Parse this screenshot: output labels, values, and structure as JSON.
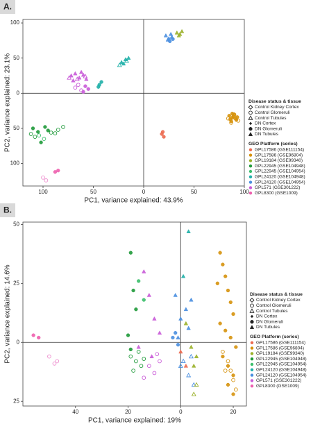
{
  "chart_data": [
    {
      "type": "scatter",
      "label": "A.",
      "xlabel": "PC1, variance explained: 43.9%",
      "ylabel": "PC2, variance explained: 23.1%",
      "xlim": [
        -120,
        100
      ],
      "ylim": [
        -132,
        105
      ],
      "xticks": [
        {
          "value": -100,
          "label": "100"
        },
        {
          "value": -50,
          "label": "50"
        },
        0,
        50,
        100
      ],
      "yticks": [
        100,
        50,
        0,
        {
          "value": -50,
          "label": "50"
        },
        {
          "value": -100,
          "label": "100"
        }
      ],
      "legends": [
        {
          "title": "Disease status & tissue",
          "entries": [
            {
              "name": "Control Kidney Cortex",
              "shape": "diamond-open"
            },
            {
              "name": "Control Glomeruli",
              "shape": "circle-open"
            },
            {
              "name": "Control Tubules",
              "shape": "triangle-open"
            },
            {
              "name": "DN Cortex",
              "shape": "diamond"
            },
            {
              "name": "DN Glomeruli",
              "shape": "circle"
            },
            {
              "name": "DN Tubules",
              "shape": "triangle"
            }
          ]
        },
        {
          "title": "GEO Platform (series)",
          "entries": [
            {
              "name": "GPL17586 (GSE111154)",
              "color": "#ec6a50"
            },
            {
              "name": "GPL17586 (GSE96804)",
              "color": "#d6920c"
            },
            {
              "name": "GPL19184 (GSE99340)",
              "color": "#9bb12a"
            },
            {
              "name": "GPL22945 (GSE104948)",
              "color": "#1f9a3a"
            },
            {
              "name": "GPL22945 (GSE104954)",
              "color": "#3cbf6c"
            },
            {
              "name": "GPL24120 (GSE104948)",
              "color": "#1fb0a8"
            },
            {
              "name": "GPL24120 (GSE104954)",
              "color": "#4a8fe0"
            },
            {
              "name": "GPL571 (GSE301222)",
              "color": "#c95bd8"
            },
            {
              "name": "GPL8300 (GSE1009)",
              "color": "#ee5fae"
            }
          ]
        }
      ],
      "series": [
        {
          "color": "#d6920c",
          "shape": "circle",
          "x": [
            85,
            88,
            90,
            92,
            87,
            89,
            91,
            86,
            93,
            88
          ],
          "y": [
            -32,
            -35,
            -30,
            -38,
            -40,
            -33,
            -36,
            -37,
            -34,
            -29
          ]
        },
        {
          "color": "#d6920c",
          "shape": "circle-open",
          "x": [
            84,
            90,
            94,
            87
          ],
          "y": [
            -36,
            -31,
            -39,
            -42
          ]
        },
        {
          "color": "#ec6a50",
          "shape": "circle",
          "x": [
            18,
            20,
            19
          ],
          "y": [
            -58,
            -62,
            -55
          ]
        },
        {
          "color": "#4a8fe0",
          "shape": "triangle",
          "x": [
            22,
            25,
            28,
            24,
            27
          ],
          "y": [
            82,
            78,
            80,
            76,
            84
          ]
        },
        {
          "color": "#4a8fe0",
          "shape": "circle",
          "x": [
            26,
            29
          ],
          "y": [
            74,
            77
          ]
        },
        {
          "color": "#9bb12a",
          "shape": "triangle",
          "x": [
            33,
            36,
            38,
            35
          ],
          "y": [
            86,
            84,
            88,
            82
          ]
        },
        {
          "color": "#1fb0a8",
          "shape": "triangle",
          "x": [
            -22,
            -18,
            -15,
            -20
          ],
          "y": [
            44,
            48,
            50,
            42
          ]
        },
        {
          "color": "#1fb0a8",
          "shape": "triangle-open",
          "x": [
            -24,
            -17
          ],
          "y": [
            40,
            46
          ]
        },
        {
          "color": "#1fb0a8",
          "shape": "circle",
          "x": [
            -44,
            -42,
            -45
          ],
          "y": [
            12,
            16,
            9
          ]
        },
        {
          "color": "#c95bd8",
          "shape": "triangle",
          "x": [
            -72,
            -68,
            -64,
            -60,
            -57,
            -70,
            -62
          ],
          "y": [
            25,
            28,
            22,
            26,
            20,
            18,
            30
          ]
        },
        {
          "color": "#c95bd8",
          "shape": "triangle-open",
          "x": [
            -66,
            -58,
            -74
          ],
          "y": [
            20,
            24,
            22
          ]
        },
        {
          "color": "#c95bd8",
          "shape": "circle-open",
          "x": [
            -68,
            -62,
            -65
          ],
          "y": [
            8,
            4,
            12
          ]
        },
        {
          "color": "#c95bd8",
          "shape": "circle",
          "x": [
            -58,
            -55,
            -60
          ],
          "y": [
            10,
            6,
            2
          ]
        },
        {
          "color": "#1f9a3a",
          "shape": "circle",
          "x": [
            -110,
            -105,
            -98,
            -102,
            -95
          ],
          "y": [
            -50,
            -55,
            -48,
            -70,
            -53
          ]
        },
        {
          "color": "#1f9a3a",
          "shape": "circle-open",
          "x": [
            -112,
            -108,
            -92,
            -85,
            -80,
            -88
          ],
          "y": [
            -58,
            -62,
            -56,
            -52,
            -48,
            -57
          ]
        },
        {
          "color": "#3cbf6c",
          "shape": "circle-open",
          "x": [
            -104,
            -99
          ],
          "y": [
            -60,
            -65
          ]
        },
        {
          "color": "#ee5fae",
          "shape": "circle",
          "x": [
            -88,
            -85
          ],
          "y": [
            -112,
            -110
          ]
        },
        {
          "color": "#ee8fcf",
          "shape": "circle-open",
          "x": [
            -100,
            -97
          ],
          "y": [
            -120,
            -124
          ]
        }
      ]
    },
    {
      "type": "scatter",
      "label": "B.",
      "xlabel": "PC1, variance explained: 19%",
      "ylabel": "PC2, variance explained: 14.6%",
      "xlim": [
        -60,
        25
      ],
      "ylim": [
        -27,
        51
      ],
      "xticks": [
        {
          "value": -40,
          "label": "40"
        },
        {
          "value": -20,
          "label": "20"
        },
        0,
        20
      ],
      "yticks": [
        50,
        25,
        0,
        {
          "value": -25,
          "label": "25"
        }
      ],
      "legends": [
        {
          "title": "Disease status & tissue",
          "entries": [
            {
              "name": "Control Kidney Cortex",
              "shape": "diamond-open"
            },
            {
              "name": "Control Glomeruli",
              "shape": "circle-open"
            },
            {
              "name": "Control Tubules",
              "shape": "triangle-open"
            },
            {
              "name": "DN Cortex",
              "shape": "diamond"
            },
            {
              "name": "DN Glomeruli",
              "shape": "circle"
            },
            {
              "name": "DN Tubules",
              "shape": "triangle"
            }
          ]
        },
        {
          "title": "GEO Platform (series)",
          "entries": [
            {
              "name": "GPL17586 (GSE111154)",
              "color": "#ec6a50"
            },
            {
              "name": "GPL17586 (GSE96804)",
              "color": "#d6920c"
            },
            {
              "name": "GPL19184 (GSE99340)",
              "color": "#9bb12a"
            },
            {
              "name": "GPL22945 (GSE104948)",
              "color": "#1f9a3a"
            },
            {
              "name": "GPL22945 (GSE104954)",
              "color": "#3cbf6c"
            },
            {
              "name": "GPL24120 (GSE104948)",
              "color": "#1fb0a8"
            },
            {
              "name": "GPL24120 (GSE104954)",
              "color": "#4a8fe0"
            },
            {
              "name": "GPL571 (GSE301222)",
              "color": "#c95bd8"
            },
            {
              "name": "GPL8300 (GSE1009)",
              "color": "#ee5fae"
            }
          ]
        }
      ],
      "series": [
        {
          "color": "#ee5fae",
          "shape": "circle",
          "x": [
            -56,
            -54
          ],
          "y": [
            3,
            2
          ]
        },
        {
          "color": "#ee8fcf",
          "shape": "circle-open",
          "x": [
            -50,
            -48,
            -47
          ],
          "y": [
            -6,
            -9,
            -8
          ]
        },
        {
          "color": "#d6920c",
          "shape": "circle",
          "x": [
            15,
            16,
            17,
            18,
            19,
            20,
            15,
            17,
            19,
            21,
            16,
            18,
            20,
            14,
            18,
            20
          ],
          "y": [
            38,
            33,
            28,
            22,
            17,
            12,
            8,
            5,
            2,
            -2,
            -6,
            -10,
            -14,
            25,
            -18,
            -22
          ]
        },
        {
          "color": "#d6920c",
          "shape": "circle-open",
          "x": [
            16,
            18,
            19,
            20,
            21,
            17
          ],
          "y": [
            -4,
            -8,
            -12,
            -16,
            -20,
            -12
          ]
        },
        {
          "color": "#1f9a3a",
          "shape": "circle",
          "x": [
            -19,
            -18,
            -17,
            -20,
            -19
          ],
          "y": [
            38,
            22,
            14,
            3,
            -3
          ]
        },
        {
          "color": "#1f9a3a",
          "shape": "circle-open",
          "x": [
            -19,
            -17,
            -15,
            -18,
            -16,
            -14
          ],
          "y": [
            -6,
            -8,
            -10,
            -12,
            -4,
            -7
          ]
        },
        {
          "color": "#3cbf6c",
          "shape": "circle",
          "x": [
            -16,
            -14
          ],
          "y": [
            26,
            18
          ]
        },
        {
          "color": "#c95bd8",
          "shape": "triangle",
          "x": [
            -14,
            -12,
            -10,
            -8,
            -16,
            -11
          ],
          "y": [
            30,
            20,
            10,
            4,
            -2,
            -6
          ]
        },
        {
          "color": "#c95bd8",
          "shape": "circle-open",
          "x": [
            -12,
            -10,
            -8,
            -14,
            -9
          ],
          "y": [
            -10,
            -13,
            -8,
            -15,
            -5
          ]
        },
        {
          "color": "#4a8fe0",
          "shape": "triangle",
          "x": [
            -2,
            0,
            2,
            4,
            -1,
            3
          ],
          "y": [
            20,
            10,
            14,
            18,
            2,
            6
          ]
        },
        {
          "color": "#4a8fe0",
          "shape": "triangle-open",
          "x": [
            1,
            3,
            5,
            0,
            4
          ],
          "y": [
            -8,
            -14,
            -18,
            -10,
            -6
          ]
        },
        {
          "color": "#1fb0a8",
          "shape": "triangle",
          "x": [
            3,
            1
          ],
          "y": [
            47,
            28
          ]
        },
        {
          "color": "#9bb12a",
          "shape": "triangle",
          "x": [
            4,
            6,
            5,
            2
          ],
          "y": [
            -2,
            -6,
            -10,
            8
          ]
        },
        {
          "color": "#9bb12a",
          "shape": "triangle-open",
          "x": [
            5,
            6
          ],
          "y": [
            -22,
            -18
          ]
        },
        {
          "color": "#ec6a50",
          "shape": "triangle",
          "x": [
            0,
            2
          ],
          "y": [
            -4,
            -10
          ]
        },
        {
          "color": "#4a8fe0",
          "shape": "circle",
          "x": [
            -3,
            -1,
            -2
          ],
          "y": [
            2,
            -1,
            4
          ]
        }
      ]
    }
  ]
}
